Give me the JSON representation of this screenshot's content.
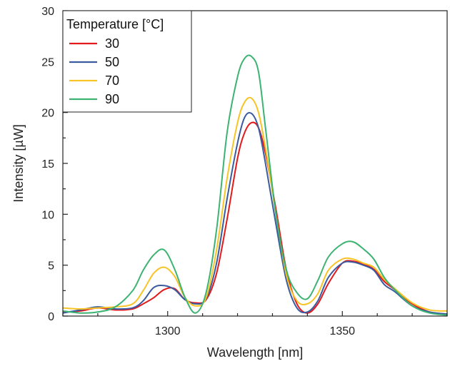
{
  "chart_data": {
    "type": "line",
    "title": "",
    "xlabel": "Wavelength [nm]",
    "ylabel": "Intensity [µW]",
    "xlim": [
      1270,
      1380
    ],
    "ylim": [
      0,
      30
    ],
    "x_ticks": [
      1300,
      1350
    ],
    "y_ticks": [
      0,
      5,
      10,
      15,
      20,
      25,
      30
    ],
    "grid": false,
    "legend": {
      "title": "Temperature [°C]",
      "placement": "top-left"
    },
    "x": [
      1270,
      1275,
      1280,
      1285,
      1290,
      1293,
      1296,
      1299,
      1302,
      1305,
      1308,
      1311,
      1314,
      1317,
      1320,
      1322,
      1324,
      1326,
      1328,
      1331,
      1334,
      1337,
      1340,
      1343,
      1346,
      1350,
      1353,
      1356,
      1359,
      1362,
      1365,
      1370,
      1375,
      1380
    ],
    "series": [
      {
        "name": "30",
        "color": "#e31a1c",
        "values": [
          0.4,
          0.5,
          0.8,
          0.6,
          0.7,
          1.2,
          1.8,
          2.6,
          2.7,
          1.6,
          1.3,
          1.6,
          4.2,
          9.5,
          15.5,
          18.0,
          19.0,
          18.5,
          16.0,
          10.5,
          4.5,
          1.2,
          0.3,
          1.2,
          3.2,
          5.2,
          5.4,
          5.1,
          4.6,
          3.4,
          2.6,
          1.2,
          0.4,
          0.2
        ]
      },
      {
        "name": "50",
        "color": "#3a5ba0",
        "values": [
          0.3,
          0.6,
          0.9,
          0.7,
          0.8,
          1.5,
          2.8,
          3.0,
          2.6,
          1.6,
          1.2,
          1.7,
          5.2,
          11.5,
          17.0,
          19.5,
          19.9,
          18.5,
          15.0,
          9.0,
          3.5,
          0.8,
          0.4,
          1.5,
          3.8,
          5.2,
          5.3,
          5.0,
          4.5,
          3.1,
          2.4,
          1.0,
          0.4,
          0.2
        ]
      },
      {
        "name": "70",
        "color": "#f7c325",
        "values": [
          0.8,
          0.7,
          0.8,
          0.9,
          1.2,
          2.5,
          4.2,
          4.8,
          3.9,
          1.8,
          1.0,
          1.8,
          6.5,
          13.5,
          19.0,
          21.0,
          21.4,
          20.0,
          16.5,
          10.0,
          4.0,
          1.5,
          1.2,
          2.2,
          4.5,
          5.6,
          5.6,
          5.2,
          4.8,
          3.6,
          2.7,
          1.3,
          0.6,
          0.5
        ]
      },
      {
        "name": "90",
        "color": "#3cb371",
        "values": [
          0.5,
          0.3,
          0.4,
          0.9,
          2.5,
          4.5,
          6.0,
          6.5,
          4.6,
          1.8,
          0.3,
          2.3,
          8.5,
          18.0,
          23.5,
          25.3,
          25.5,
          24.0,
          18.5,
          10.0,
          4.5,
          2.3,
          1.7,
          3.5,
          5.8,
          7.1,
          7.3,
          6.6,
          5.6,
          3.8,
          2.6,
          1.0,
          0.3,
          0.1
        ]
      }
    ]
  }
}
